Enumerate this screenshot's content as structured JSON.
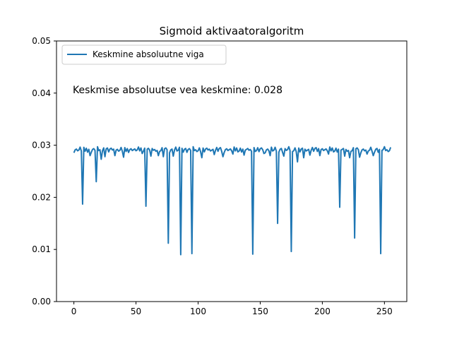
{
  "chart_data": {
    "type": "line",
    "title": "Sigmoid aktivaatoralgoritm",
    "xlabel": "",
    "ylabel": "",
    "xlim": [
      -14,
      268
    ],
    "ylim": [
      0.0,
      0.05
    ],
    "x_ticks": [
      0,
      50,
      100,
      150,
      200,
      250
    ],
    "x_tick_labels": [
      "0",
      "50",
      "100",
      "150",
      "200",
      "250"
    ],
    "y_ticks": [
      0.0,
      0.01,
      0.02,
      0.03,
      0.04,
      0.05
    ],
    "y_tick_labels": [
      "0.00",
      "0.01",
      "0.02",
      "0.03",
      "0.04",
      "0.05"
    ],
    "grid": false,
    "legend": {
      "position": "top-left"
    },
    "annotation": "Keskmise absoluutse vea keskmine: 0.028",
    "series": [
      {
        "name": "Keskmine absoluutne viga",
        "color": "#1f77b4",
        "x_start": 0,
        "x_step": 1,
        "baseline": 0.0292,
        "spikes": [
          [
            7,
            0.0187
          ],
          [
            18,
            0.023
          ],
          [
            58,
            0.0183
          ],
          [
            76,
            0.0112
          ],
          [
            86,
            0.009
          ],
          [
            95,
            0.0092
          ],
          [
            144,
            0.0091
          ],
          [
            164,
            0.015
          ],
          [
            175,
            0.0096
          ],
          [
            214,
            0.0181
          ],
          [
            226,
            0.0122
          ],
          [
            247,
            0.0092
          ]
        ],
        "minor_dips": [
          [
            13,
            0.028
          ],
          [
            22,
            0.0273
          ],
          [
            25,
            0.0278
          ],
          [
            33,
            0.028
          ],
          [
            40,
            0.0277
          ],
          [
            55,
            0.0284
          ],
          [
            62,
            0.0279
          ],
          [
            68,
            0.028
          ],
          [
            72,
            0.0278
          ],
          [
            80,
            0.0279
          ],
          [
            103,
            0.0276
          ],
          [
            113,
            0.0282
          ],
          [
            120,
            0.0278
          ],
          [
            128,
            0.0283
          ],
          [
            137,
            0.0281
          ],
          [
            153,
            0.0284
          ],
          [
            158,
            0.028
          ],
          [
            169,
            0.0279
          ],
          [
            180,
            0.0268
          ],
          [
            185,
            0.0276
          ],
          [
            190,
            0.0281
          ],
          [
            198,
            0.028
          ],
          [
            205,
            0.0283
          ],
          [
            218,
            0.0279
          ],
          [
            222,
            0.0276
          ],
          [
            230,
            0.0277
          ],
          [
            236,
            0.0283
          ],
          [
            241,
            0.028
          ]
        ],
        "x_end": 255,
        "last_value": 0.0296
      }
    ]
  }
}
